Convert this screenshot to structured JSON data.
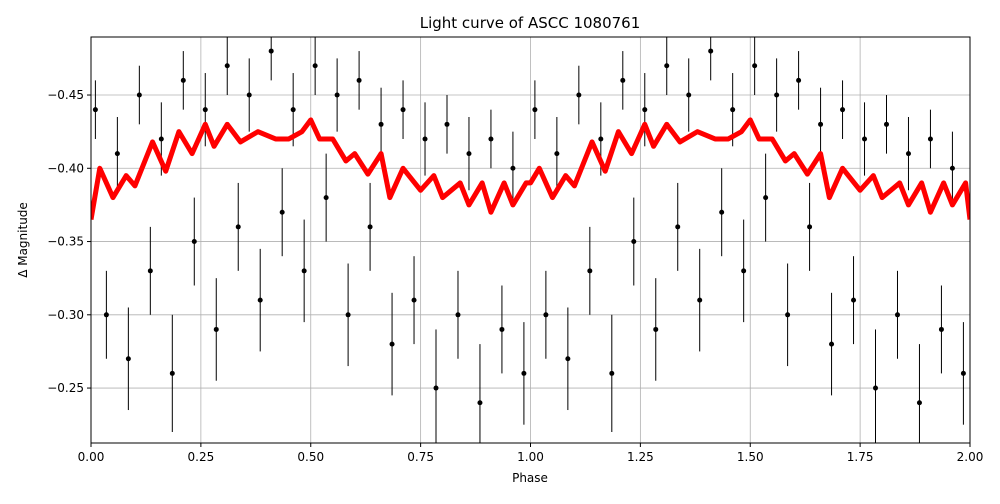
{
  "chart_data": {
    "type": "line",
    "title": "Light curve of ASCC 1080761",
    "x_label": "Phase",
    "y_label": "Δ Magnitude",
    "xlim": [
      0,
      2
    ],
    "ylim": [
      -0.4896,
      -0.2125
    ],
    "invert_y": true,
    "grid": true,
    "xticks": [
      {
        "value": 0,
        "label": "0.00"
      },
      {
        "value": 0.25,
        "label": "0.25"
      },
      {
        "value": 0.5,
        "label": "0.50"
      },
      {
        "value": 0.75,
        "label": "0.75"
      },
      {
        "value": 1,
        "label": "1.00"
      },
      {
        "value": 1.25,
        "label": "1.25"
      },
      {
        "value": 1.5,
        "label": "1.50"
      },
      {
        "value": 1.75,
        "label": "1.75"
      },
      {
        "value": 2,
        "label": "2.00"
      }
    ],
    "yticks": [
      {
        "value": -0.45,
        "label": "−0.45"
      },
      {
        "value": -0.4,
        "label": "−0.40"
      },
      {
        "value": -0.35,
        "label": "−0.35"
      },
      {
        "value": -0.3,
        "label": "−0.30"
      },
      {
        "value": -0.25,
        "label": "−0.25"
      }
    ],
    "series": [
      {
        "style": "errorbar",
        "color": "#000000",
        "x": [
          0.01,
          0.035,
          0.06,
          0.085,
          0.11,
          0.135,
          0.16,
          0.185,
          0.21,
          0.235,
          0.26,
          0.285,
          0.31,
          0.335,
          0.36,
          0.385,
          0.41,
          0.435,
          0.46,
          0.485,
          0.51,
          0.535,
          0.56,
          0.585,
          0.61,
          0.635,
          0.66,
          0.685,
          0.71,
          0.735,
          0.76,
          0.785,
          0.81,
          0.835,
          0.86,
          0.885,
          0.91,
          0.935,
          0.96,
          0.985,
          1.01,
          1.035,
          1.06,
          1.085,
          1.11,
          1.135,
          1.16,
          1.185,
          1.21,
          1.235,
          1.26,
          1.285,
          1.31,
          1.335,
          1.36,
          1.385,
          1.41,
          1.435,
          1.46,
          1.485,
          1.51,
          1.535,
          1.56,
          1.585,
          1.61,
          1.635,
          1.66,
          1.685,
          1.71,
          1.735,
          1.76,
          1.785,
          1.81,
          1.835,
          1.86,
          1.885,
          1.91,
          1.935,
          1.96,
          1.985
        ],
        "values": [
          -0.44,
          -0.3,
          -0.41,
          -0.27,
          -0.45,
          -0.33,
          -0.42,
          -0.26,
          -0.46,
          -0.35,
          -0.44,
          -0.29,
          -0.47,
          -0.36,
          -0.45,
          -0.31,
          -0.48,
          -0.37,
          -0.44,
          -0.33,
          -0.47,
          -0.38,
          -0.45,
          -0.3,
          -0.46,
          -0.36,
          -0.43,
          -0.28,
          -0.44,
          -0.31,
          -0.42,
          -0.25,
          -0.43,
          -0.3,
          -0.41,
          -0.24,
          -0.42,
          -0.29,
          -0.4,
          -0.26,
          -0.44,
          -0.3,
          -0.41,
          -0.27,
          -0.45,
          -0.33,
          -0.42,
          -0.26,
          -0.46,
          -0.35,
          -0.44,
          -0.29,
          -0.47,
          -0.36,
          -0.45,
          -0.31,
          -0.48,
          -0.37,
          -0.44,
          -0.33,
          -0.47,
          -0.38,
          -0.45,
          -0.3,
          -0.46,
          -0.36,
          -0.43,
          -0.28,
          -0.44,
          -0.31,
          -0.42,
          -0.25,
          -0.43,
          -0.3,
          -0.41,
          -0.24,
          -0.42,
          -0.29,
          -0.4,
          -0.26
        ],
        "errors": [
          0.02,
          0.03,
          0.025,
          0.035,
          0.02,
          0.03,
          0.025,
          0.04,
          0.02,
          0.03,
          0.025,
          0.035,
          0.02,
          0.03,
          0.025,
          0.035,
          0.02,
          0.03,
          0.025,
          0.035,
          0.02,
          0.03,
          0.025,
          0.035,
          0.02,
          0.03,
          0.025,
          0.035,
          0.02,
          0.03,
          0.025,
          0.04,
          0.02,
          0.03,
          0.025,
          0.04,
          0.02,
          0.03,
          0.025,
          0.035,
          0.02,
          0.03,
          0.025,
          0.035,
          0.02,
          0.03,
          0.025,
          0.04,
          0.02,
          0.03,
          0.025,
          0.035,
          0.02,
          0.03,
          0.025,
          0.035,
          0.02,
          0.03,
          0.025,
          0.035,
          0.02,
          0.03,
          0.025,
          0.035,
          0.02,
          0.03,
          0.025,
          0.035,
          0.02,
          0.03,
          0.025,
          0.04,
          0.02,
          0.03,
          0.025,
          0.04,
          0.02,
          0.03,
          0.025,
          0.035
        ]
      },
      {
        "style": "line",
        "color": "#ff0000",
        "x": [
          0,
          0.02,
          0.05,
          0.08,
          0.1,
          0.14,
          0.17,
          0.2,
          0.23,
          0.26,
          0.28,
          0.31,
          0.34,
          0.38,
          0.42,
          0.45,
          0.48,
          0.5,
          0.52,
          0.55,
          0.58,
          0.6,
          0.63,
          0.66,
          0.68,
          0.71,
          0.75,
          0.78,
          0.8,
          0.84,
          0.86,
          0.89,
          0.91,
          0.94,
          0.96,
          0.99,
          1,
          1.02,
          1.05,
          1.08,
          1.1,
          1.14,
          1.17,
          1.2,
          1.23,
          1.26,
          1.28,
          1.31,
          1.34,
          1.38,
          1.42,
          1.45,
          1.48,
          1.5,
          1.52,
          1.55,
          1.58,
          1.6,
          1.63,
          1.66,
          1.68,
          1.71,
          1.75,
          1.78,
          1.8,
          1.84,
          1.86,
          1.89,
          1.91,
          1.94,
          1.96,
          1.99,
          2
        ],
        "values": [
          -0.365,
          -0.4,
          -0.38,
          -0.395,
          -0.388,
          -0.418,
          -0.398,
          -0.425,
          -0.41,
          -0.43,
          -0.415,
          -0.43,
          -0.418,
          -0.425,
          -0.42,
          -0.42,
          -0.425,
          -0.433,
          -0.42,
          -0.42,
          -0.405,
          -0.41,
          -0.396,
          -0.41,
          -0.38,
          -0.4,
          -0.385,
          -0.395,
          -0.38,
          -0.39,
          -0.375,
          -0.39,
          -0.37,
          -0.39,
          -0.375,
          -0.39,
          -0.39,
          -0.4,
          -0.38,
          -0.395,
          -0.388,
          -0.418,
          -0.398,
          -0.425,
          -0.41,
          -0.43,
          -0.415,
          -0.43,
          -0.418,
          -0.425,
          -0.42,
          -0.42,
          -0.425,
          -0.433,
          -0.42,
          -0.42,
          -0.405,
          -0.41,
          -0.396,
          -0.41,
          -0.38,
          -0.4,
          -0.385,
          -0.395,
          -0.38,
          -0.39,
          -0.375,
          -0.39,
          -0.37,
          -0.39,
          -0.375,
          -0.39,
          -0.365
        ]
      }
    ]
  }
}
